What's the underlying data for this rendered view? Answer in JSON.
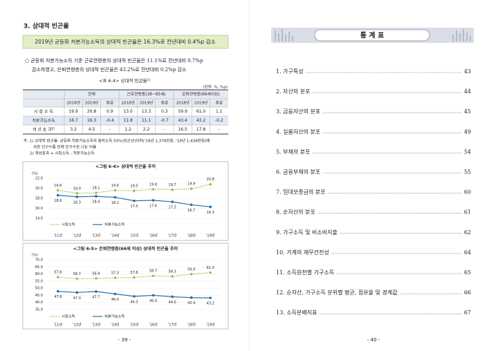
{
  "left_page": {
    "section_title": "3. 상대적 빈곤율",
    "summary": "2019년 균등화 처분가능소득의 상대적 빈곤율은 16.3%로 전년대비 0.4%p 감소",
    "bullet_lines": [
      "○ 균등화 처분가능소득 기준 근로연령층의 상대적 빈곤율은 11.1%로 전년대비 0.7%p",
      "감소하였고, 은퇴연령층의 상대적 빈곤율은 43.2%로 전년대비 0.2%p 감소"
    ],
    "table": {
      "caption": "<표 6-4> 상대적 빈곤율",
      "caption_note": "1)",
      "unit": "(단위: %, %p)",
      "header_groups": [
        "전체",
        "근로연령층(18~65세)",
        "은퇴연령층(66세이상)"
      ],
      "sub_headers": [
        "2018년",
        "2019년",
        "증감",
        "2018년",
        "2019년",
        "증감",
        "2018년",
        "2019년",
        "증감"
      ],
      "rows": [
        {
          "label": "시 장 소 득",
          "cells": [
            "19.9",
            "20.8",
            "0.9",
            "13.0",
            "13.3",
            "0.3",
            "59.9",
            "61.0",
            "1.1"
          ]
        },
        {
          "label": "처분가능소득",
          "cells": [
            "16.7",
            "16.3",
            "-0.4",
            "11.8",
            "11.1",
            "-0.7",
            "43.4",
            "43.2",
            "-0.2"
          ]
        },
        {
          "label": "개 선 효 과",
          "label_note": "2)",
          "cells": [
            "3.2",
            "4.5",
            "-",
            "1.2",
            "2.2",
            "-",
            "16.5",
            "17.8",
            "-"
          ]
        }
      ]
    },
    "notes": [
      "주: 1) 상대적 빈곤율: 균등화 처분가능소득의 중위소득 50%(빈곤선)이하('18년 1,378만원, '19년 1,438만원)에",
      "속한 인구수를 전체 인구수로 나눈 비율",
      "2) 개선효과 = 시장소득 - 처분가능소득"
    ],
    "page_number": "- 39 -"
  },
  "right_page": {
    "title": "통 계 표",
    "toc": [
      {
        "label": "1. 가구특성",
        "page": "43"
      },
      {
        "label": "2. 자산의 분포",
        "page": "44"
      },
      {
        "label": "3. 금융자산의 분포",
        "page": "45"
      },
      {
        "label": "4. 실물자산의 분포",
        "page": "49"
      },
      {
        "label": "5. 부채의 분포",
        "page": "54"
      },
      {
        "label": "6. 금융부채의 분포",
        "page": "55"
      },
      {
        "label": "7. 임대보증금의 분포",
        "page": "60"
      },
      {
        "label": "8. 순자산의 분포",
        "page": "61"
      },
      {
        "label": "9. 가구소득 및 비소비지출",
        "page": "62"
      },
      {
        "label": "10. 가계의 재무건전성",
        "page": "64"
      },
      {
        "label": "11. 소득원천별 가구소득",
        "page": "65"
      },
      {
        "label": "12. 순자산, 가구소득 분위별 평균, 점유율 및 경계값",
        "page": "66"
      },
      {
        "label": "13. 소득분배지표",
        "page": "67"
      }
    ],
    "page_number": "- 40 -"
  },
  "chart_data": [
    {
      "type": "line",
      "title": "<그림 6-4> 상대적 빈곤율 추이",
      "y_unit": "(%)",
      "categories": [
        "'11년",
        "'12년",
        "'13년",
        "'14년",
        "'15년",
        "'16년",
        "'17년",
        "'18년",
        "'19년"
      ],
      "ylim": [
        14,
        22
      ],
      "yticks": [
        {
          "value": 14,
          "label": "14.0"
        },
        {
          "value": 16,
          "label": "16.0"
        },
        {
          "value": 18,
          "label": "18.0"
        },
        {
          "value": 20,
          "label": "20.0"
        },
        {
          "value": 22,
          "label": "22.0"
        }
      ],
      "series": [
        {
          "name": "시장소득",
          "color": "#8cbf3f",
          "dashed": true,
          "values": [
            19.6,
            19.0,
            19.1,
            19.6,
            19.5,
            19.8,
            19.7,
            19.9,
            20.8
          ],
          "value_labels": [
            "19.6",
            "19.0",
            "19.1",
            "19.6",
            "19.5",
            "19.8",
            "19.7",
            "19.9",
            "20.8"
          ]
        },
        {
          "name": "처분가능소득",
          "color": "#1f6fad",
          "dashed": false,
          "values": [
            18.6,
            18.3,
            18.4,
            18.2,
            17.5,
            17.6,
            17.3,
            16.7,
            16.3
          ],
          "value_labels": [
            "18.6",
            "18.3",
            "18.4",
            "18.2",
            "17.5",
            "17.6",
            "17.3",
            "16.7",
            "16.3"
          ]
        }
      ]
    },
    {
      "type": "line",
      "title": "<그림 6-5> 은퇴연령층(66세 이상) 상대적 빈곤율 추이",
      "y_unit": "(%)",
      "categories": [
        "'11년",
        "'12년",
        "'13년",
        "'14년",
        "'15년",
        "'16년",
        "'17년",
        "'18년",
        "'19년"
      ],
      "ylim": [
        35,
        70
      ],
      "yticks": [
        {
          "value": 35,
          "label": "35.0"
        },
        {
          "value": 40,
          "label": "40.0"
        },
        {
          "value": 45,
          "label": "45.0"
        },
        {
          "value": 50,
          "label": "50.0"
        },
        {
          "value": 55,
          "label": "55.0"
        },
        {
          "value": 60,
          "label": "60.0"
        },
        {
          "value": 65,
          "label": "65.0"
        },
        {
          "value": 70,
          "label": "70.0"
        }
      ],
      "series": [
        {
          "name": "시장소득",
          "color": "#8cbf3f",
          "dashed": true,
          "values": [
            57.8,
            56.7,
            56.9,
            57.3,
            57.6,
            58.7,
            58.3,
            59.9,
            61.0
          ],
          "value_labels": [
            "57.8",
            "56.7",
            "56.9",
            "57.3",
            "57.6",
            "58.7",
            "58.3",
            "59.9",
            "61.0"
          ]
        },
        {
          "name": "처분가능소득",
          "color": "#1f6fad",
          "dashed": false,
          "values": [
            47.8,
            47.0,
            47.7,
            46.0,
            44.3,
            45.0,
            44.0,
            43.4,
            43.2
          ],
          "value_labels": [
            "47.8",
            "47.0",
            "47.7",
            "46.0",
            "44.3",
            "45.0",
            "44.0",
            "43.4",
            "43.2"
          ]
        }
      ]
    }
  ]
}
